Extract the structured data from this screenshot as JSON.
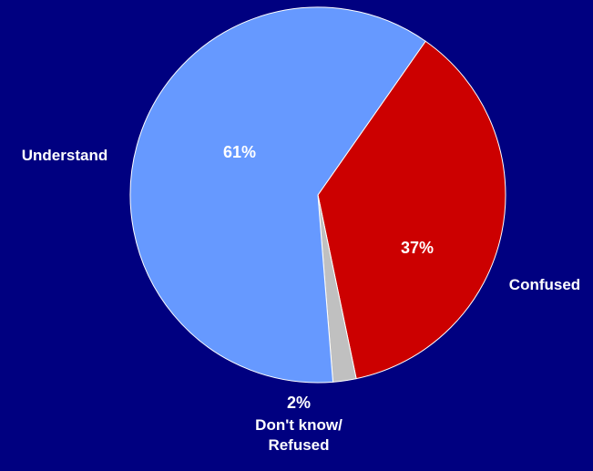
{
  "chart_data": {
    "type": "pie",
    "slices": [
      {
        "label": "Confused",
        "value": 37,
        "pct_text": "37%",
        "color": "#CC0000",
        "pct_color": "#FFFFFF"
      },
      {
        "label_lines": [
          "Don't know/",
          "Refused"
        ],
        "value": 2,
        "pct_text": "2%",
        "color": "#C0C0C0",
        "pct_color": "#FFFFFF"
      },
      {
        "label": "Understand",
        "value": 61,
        "pct_text": "61%",
        "color": "#6699FF",
        "pct_color": "#FFFFFF"
      }
    ],
    "start_angle_deg": 35,
    "direction": "clockwise",
    "background": "#000080",
    "outline_color": "#FFFFFF",
    "label_color": "#FFFFFF"
  }
}
